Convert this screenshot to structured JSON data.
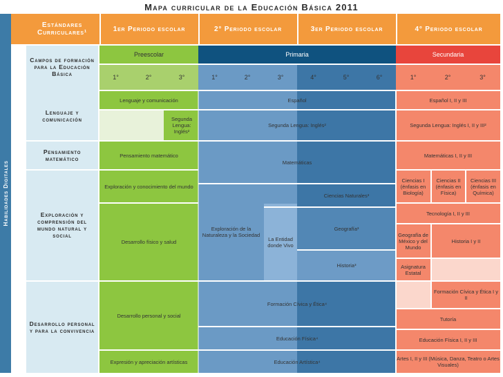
{
  "title": "Mapa curricular de la Educación Básica 2011",
  "side_label": "Habilidades Digitales",
  "header": {
    "estandares": "Estándares Curriculares¹",
    "periodo1": "1er Periodo escolar",
    "periodo2": "2° Periodo escolar",
    "periodo3": "3er Periodo escolar",
    "periodo4": "4° Periodo escolar"
  },
  "campos_label": "Campos de formación para la Educación Básica",
  "levels": {
    "preescolar": "Preescolar",
    "primaria": "Primaria",
    "secundaria": "Secundaria"
  },
  "grades": {
    "pre": [
      "1°",
      "2°",
      "3°"
    ],
    "pri": [
      "1°",
      "2°",
      "3°",
      "4°",
      "5°",
      "6°"
    ],
    "sec": [
      "1°",
      "2°",
      "3°"
    ]
  },
  "campos": {
    "lenguaje": "Lenguaje y comunicación",
    "pensamiento": "Pensamiento matemático",
    "exploracion": "Exploración y comprensión del mundo natural y social",
    "desarrollo": "Desarrollo personal y para la convivencia"
  },
  "cells": {
    "lenguaje_pre": "Lenguaje y comunicación",
    "espanol": "Español",
    "espanol_sec": "Español I, II y III",
    "segunda_lengua_pre": "Segunda Lengua: Inglés²",
    "segunda_lengua_pri": "Segunda Lengua: Inglés²",
    "segunda_lengua_sec": "Segunda Lengua: Inglés I, II y III²",
    "pensamiento_pre": "Pensamiento matemático",
    "matematicas": "Matemáticas",
    "matematicas_sec": "Matemáticas I, II y III",
    "exploracion_pre": "Exploración y conocimiento del mundo",
    "exploracion_pri": "Exploración de la Naturaleza y la Sociedad",
    "entidad": "La Entidad donde Vivo",
    "ciencias_naturales": "Ciencias Naturales³",
    "ciencias1": "Ciencias I (énfasis en Biología)",
    "ciencias2": "Ciencias II (énfasis en Física)",
    "ciencias3": "Ciencias III (énfasis en Química)",
    "tecnologia": "Tecnología I, II y III",
    "desarrollo_fisico": "Desarrollo físico y salud",
    "geografia": "Geografía³",
    "geografia_sec": "Geografía de México y del Mundo",
    "historia_sec": "Historia I y II",
    "historia": "Historia³",
    "asignatura_estatal": "Asignatura Estatal",
    "desarrollo_personal": "Desarrollo personal y social",
    "formacion_civica": "Formación Cívica y Ética⁴",
    "formacion_civica_sec": "Formación Cívica y Ética I y II",
    "tutoria": "Tutoría",
    "educacion_fisica": "Educación Física⁴",
    "educacion_fisica_sec": "Educación Física I, II y III",
    "expresion": "Expresión y apreciación artísticas",
    "educacion_artistica": "Educación Artística⁴",
    "artes_sec": "Artes I, II y III (Música, Danza, Teatro o Artes Visuales)"
  },
  "colors": {
    "side_bar": "#3d7ba7",
    "header_orange": "#f39a3c",
    "preescolar": "#8dc640",
    "preescolar_light": "#a9d06d",
    "primaria_dark": "#0f527f",
    "primaria_mid": "#5f8fbd",
    "primaria_deep": "#3d76a6",
    "secundaria": "#e8453c",
    "secundaria_cell": "#f4876b",
    "label_bg": "#d8eaf2"
  }
}
